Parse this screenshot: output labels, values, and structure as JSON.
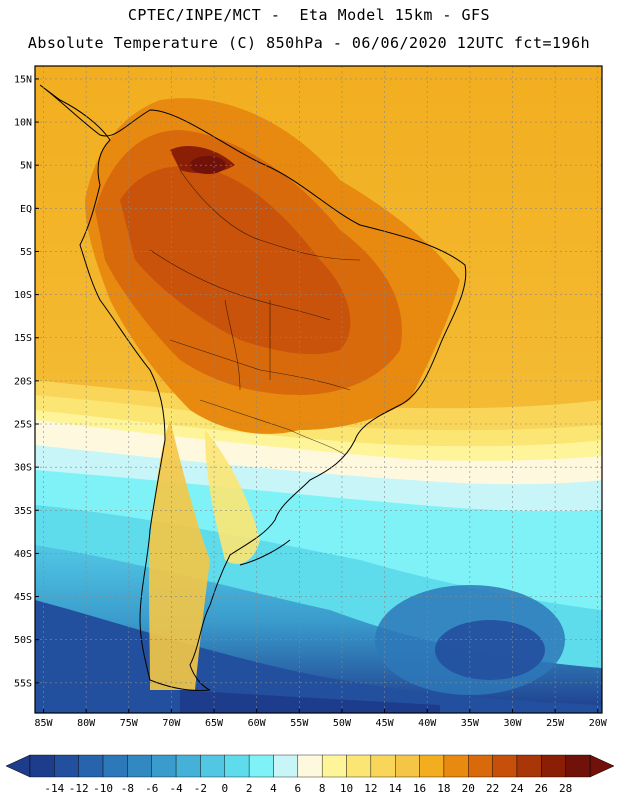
{
  "header": {
    "line1": "CPTEC/INPE/MCT -  Eta Model 15km - GFS",
    "line2": "Absolute Temperature (C) 850hPa - 06/06/2020 12UTC fct=196h"
  },
  "map": {
    "lat_labels": [
      "15N",
      "10N",
      "5N",
      "EQ",
      "5S",
      "10S",
      "15S",
      "20S",
      "25S",
      "30S",
      "35S",
      "40S",
      "45S",
      "50S",
      "55S"
    ],
    "lon_labels": [
      "85W",
      "80W",
      "75W",
      "70W",
      "65W",
      "60W",
      "55W",
      "50W",
      "45W",
      "40W",
      "35W",
      "30W",
      "25W",
      "20W"
    ],
    "extent": {
      "lon": [
        -86,
        -19.5
      ],
      "lat": [
        -58.5,
        16.5
      ]
    }
  },
  "colorbar": {
    "labels": [
      "-14",
      "-12",
      "-10",
      "-8",
      "-6",
      "-4",
      "-2",
      "0",
      "2",
      "4",
      "6",
      "8",
      "10",
      "12",
      "14",
      "16",
      "18",
      "20",
      "22",
      "24",
      "26",
      "28"
    ],
    "colors": [
      "#1e3c8c",
      "#23509e",
      "#2864ad",
      "#2d78b9",
      "#3289c2",
      "#3a9ccd",
      "#45b1d9",
      "#52c7e4",
      "#5fdcec",
      "#7ef2f6",
      "#c8f6f8",
      "#fef8df",
      "#fef59b",
      "#fce673",
      "#f9d65a",
      "#f5c645",
      "#f2ae1f",
      "#e98a10",
      "#d96a0c",
      "#c64f0a",
      "#a83608",
      "#8a1f06",
      "#70120a"
    ]
  }
}
